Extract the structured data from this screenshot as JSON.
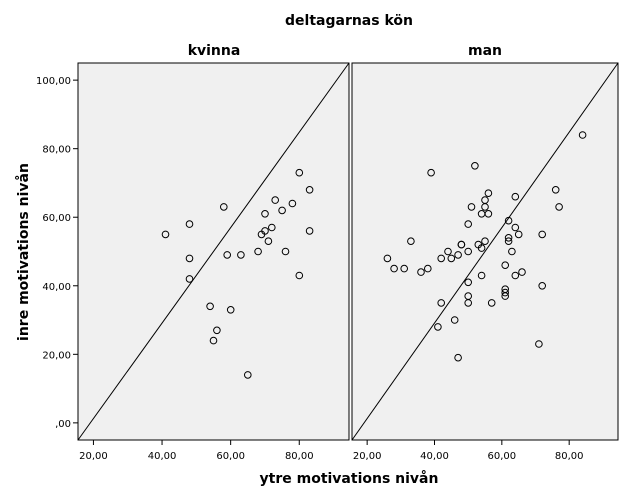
{
  "chart_data": {
    "type": "scatter",
    "title": "deltagarnas kön",
    "xlabel": "ytre motivations nivån",
    "ylabel": "inre motivations nivån",
    "x_ticks": [
      "20,00",
      "40,00",
      "60,00",
      "80,00"
    ],
    "y_ticks": [
      ",00",
      "20,00",
      "40,00",
      "60,00",
      "80,00",
      "100,00"
    ],
    "xlim": [
      15.5,
      94.5
    ],
    "ylim": [
      -5,
      105
    ],
    "grid": false,
    "panel_background": "#f0f0f0",
    "reference_line": "y = x",
    "panels": [
      {
        "name": "kvinna",
        "points": [
          [
            41,
            55
          ],
          [
            48,
            58
          ],
          [
            48,
            48
          ],
          [
            48,
            42
          ],
          [
            54,
            34
          ],
          [
            55,
            24
          ],
          [
            56,
            27
          ],
          [
            58,
            63
          ],
          [
            59,
            49
          ],
          [
            60,
            33
          ],
          [
            63,
            49
          ],
          [
            65,
            14
          ],
          [
            68,
            50
          ],
          [
            69,
            55
          ],
          [
            70,
            61
          ],
          [
            70,
            56
          ],
          [
            71,
            53
          ],
          [
            72,
            57
          ],
          [
            73,
            65
          ],
          [
            75,
            62
          ],
          [
            76,
            50
          ],
          [
            78,
            64
          ],
          [
            80,
            73
          ],
          [
            80,
            43
          ],
          [
            83,
            68
          ],
          [
            83,
            56
          ]
        ]
      },
      {
        "name": "man",
        "points": [
          [
            26,
            48
          ],
          [
            28,
            45
          ],
          [
            31,
            45
          ],
          [
            33,
            53
          ],
          [
            36,
            44
          ],
          [
            38,
            45
          ],
          [
            39,
            73
          ],
          [
            41,
            28
          ],
          [
            42,
            35
          ],
          [
            42,
            48
          ],
          [
            44,
            50
          ],
          [
            45,
            48
          ],
          [
            46,
            30
          ],
          [
            47,
            49
          ],
          [
            47,
            19
          ],
          [
            48,
            52
          ],
          [
            48,
            52
          ],
          [
            50,
            58
          ],
          [
            50,
            50
          ],
          [
            50,
            41
          ],
          [
            50,
            37
          ],
          [
            50,
            35
          ],
          [
            51,
            63
          ],
          [
            52,
            75
          ],
          [
            53,
            52
          ],
          [
            54,
            61
          ],
          [
            54,
            51
          ],
          [
            54,
            43
          ],
          [
            55,
            65
          ],
          [
            55,
            63
          ],
          [
            55,
            53
          ],
          [
            56,
            67
          ],
          [
            56,
            61
          ],
          [
            57,
            35
          ],
          [
            61,
            46
          ],
          [
            61,
            39
          ],
          [
            61,
            38
          ],
          [
            61,
            37
          ],
          [
            62,
            59
          ],
          [
            62,
            54
          ],
          [
            62,
            53
          ],
          [
            63,
            50
          ],
          [
            64,
            66
          ],
          [
            64,
            57
          ],
          [
            64,
            43
          ],
          [
            65,
            55
          ],
          [
            66,
            44
          ],
          [
            71,
            23
          ],
          [
            72,
            55
          ],
          [
            72,
            40
          ],
          [
            76,
            68
          ],
          [
            77,
            63
          ],
          [
            84,
            84
          ]
        ]
      }
    ]
  }
}
